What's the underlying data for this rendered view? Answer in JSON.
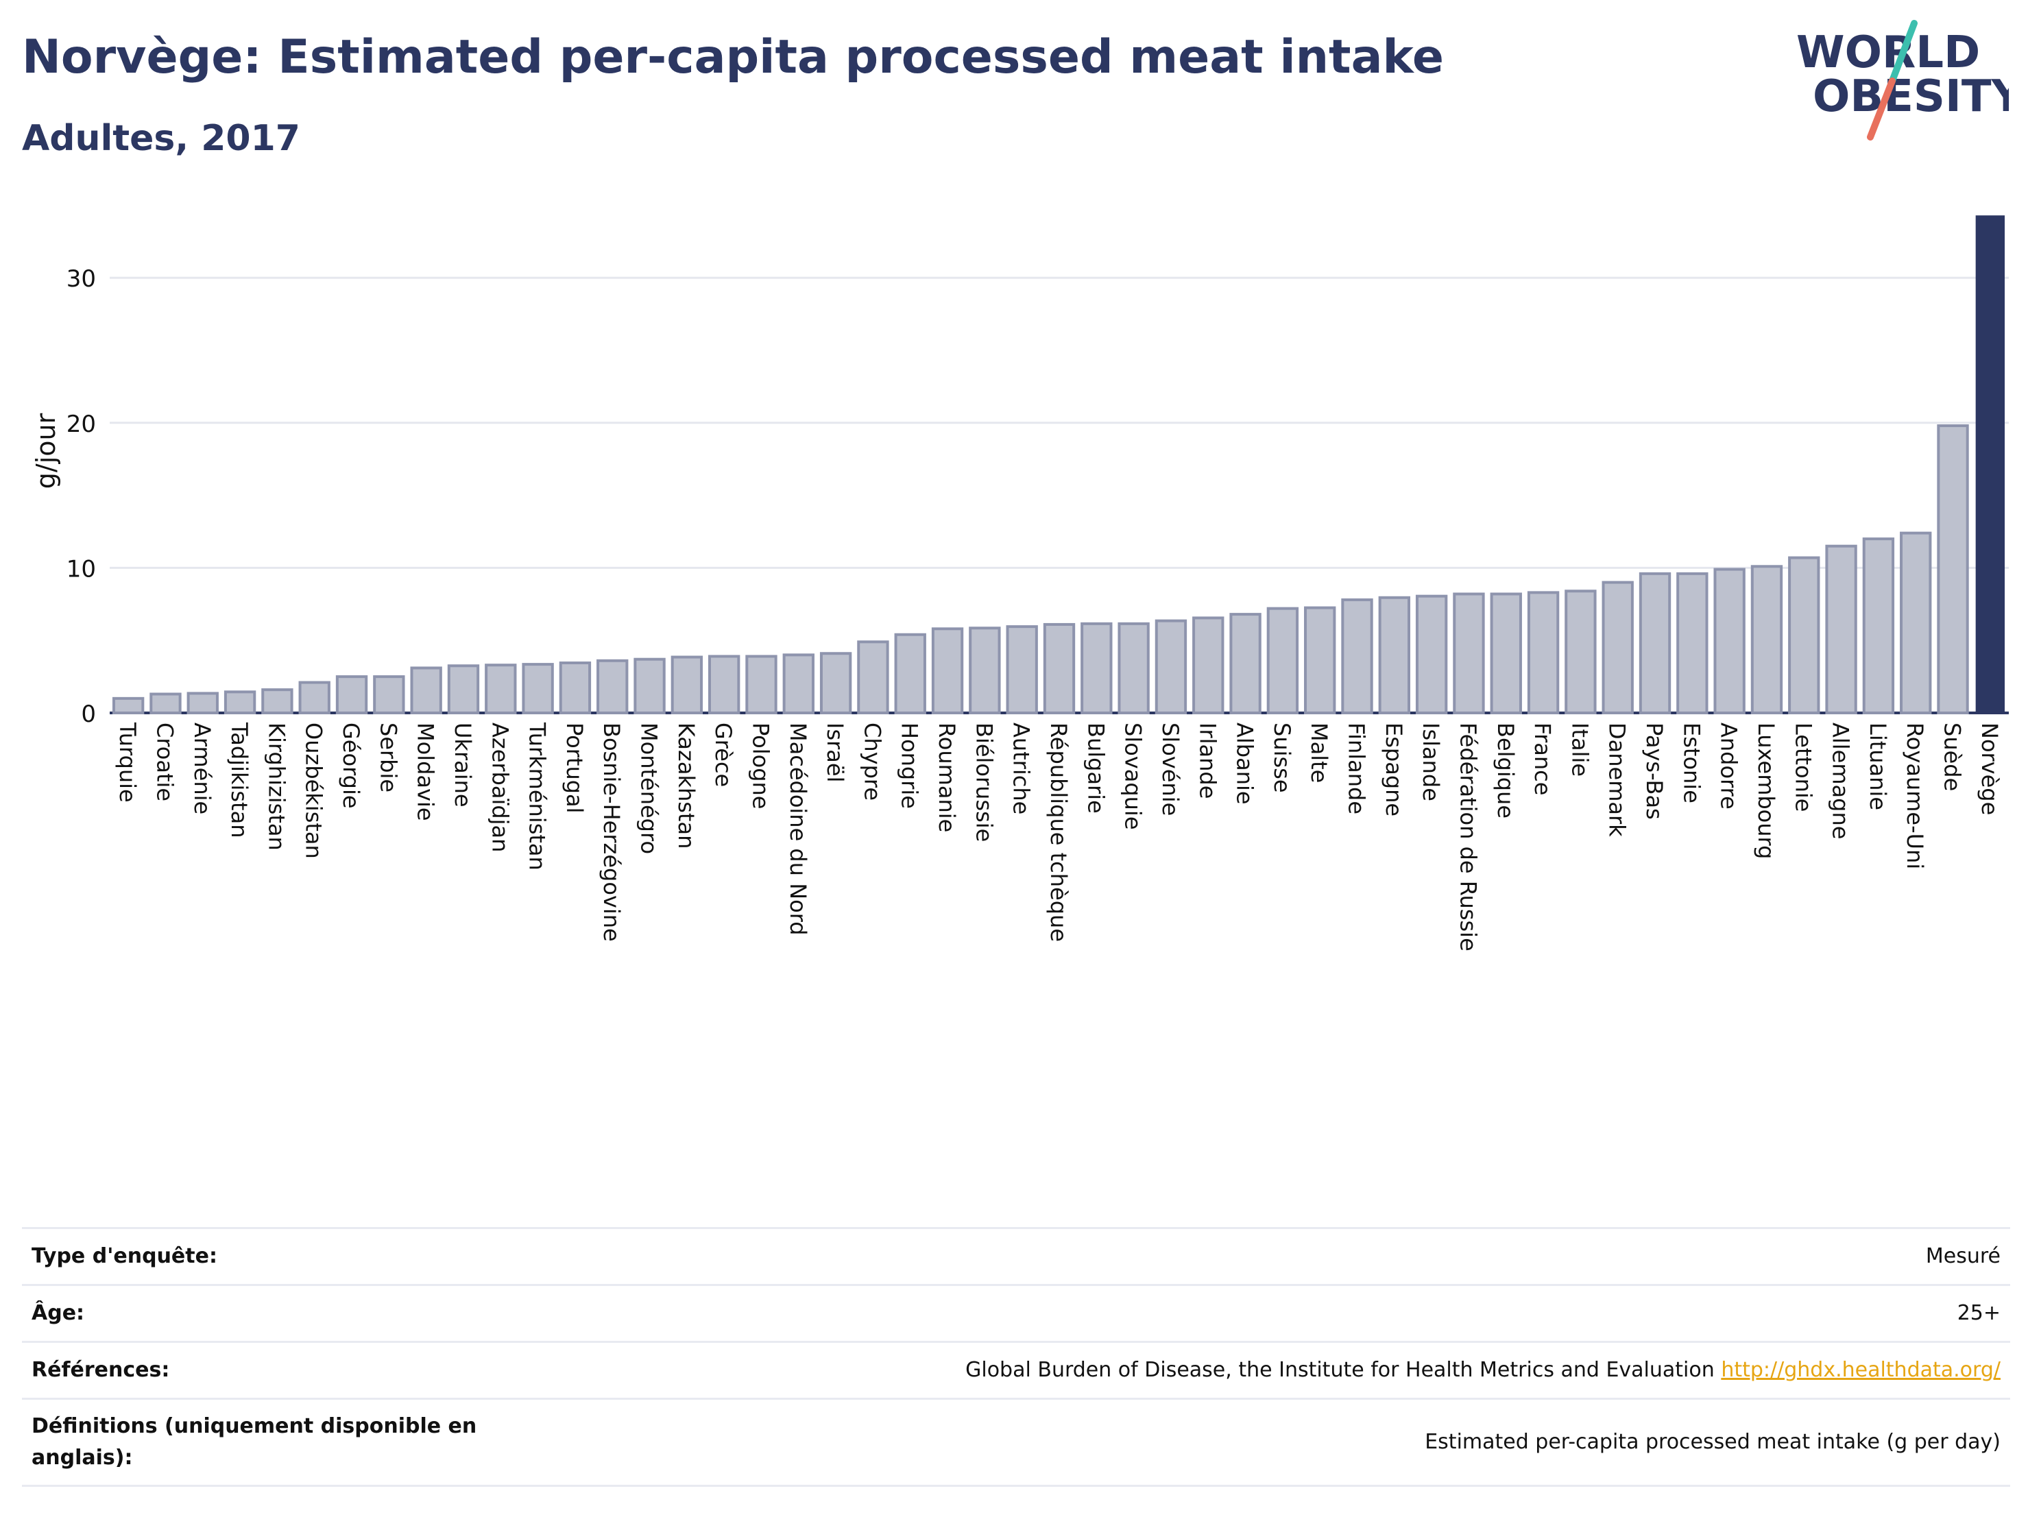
{
  "header": {
    "title": "Norvège: Estimated per-capita processed meat intake",
    "subtitle": "Adultes, 2017"
  },
  "logo": {
    "line1": "WORLD",
    "line2": "OBESITY"
  },
  "colors": {
    "bar_fill": "#bdc1ce",
    "bar_stroke": "#8e94ad",
    "highlight": "#2c3762",
    "grid": "#e5e7ee",
    "text": "#2c3762",
    "link": "#e6a513",
    "logo_teal": "#3cbfae",
    "logo_coral": "#e8705d"
  },
  "chart_data": {
    "type": "bar",
    "title": "Norvège: Estimated per-capita processed meat intake",
    "subtitle": "Adultes, 2017",
    "ylabel": "g/jour",
    "ylim": [
      0,
      34.5
    ],
    "yticks": [
      0,
      10,
      20,
      30
    ],
    "grid": true,
    "highlight": "Norvège",
    "categories": [
      "Turquie",
      "Croatie",
      "Arménie",
      "Tadjikistan",
      "Kirghizistan",
      "Ouzbékistan",
      "Géorgie",
      "Serbie",
      "Moldavie",
      "Ukraine",
      "Azerbaïdjan",
      "Turkménistan",
      "Portugal",
      "Bosnie-Herzégovine",
      "Monténégro",
      "Kazakhstan",
      "Grèce",
      "Pologne",
      "Macédoine du Nord",
      "Israël",
      "Chypre",
      "Hongrie",
      "Roumanie",
      "Biélorussie",
      "Autriche",
      "République tchèque",
      "Bulgarie",
      "Slovaquie",
      "Slovénie",
      "Irlande",
      "Albanie",
      "Suisse",
      "Malte",
      "Finlande",
      "Espagne",
      "Islande",
      "Fédération de Russie",
      "Belgique",
      "France",
      "Italie",
      "Danemark",
      "Pays-Bas",
      "Estonie",
      "Andorre",
      "Luxembourg",
      "Lettonie",
      "Allemagne",
      "Lituanie",
      "Royaume-Uni",
      "Suède",
      "Norvège"
    ],
    "values": [
      1.0,
      1.3,
      1.35,
      1.45,
      1.6,
      2.1,
      2.5,
      2.5,
      3.1,
      3.25,
      3.3,
      3.35,
      3.45,
      3.6,
      3.7,
      3.85,
      3.9,
      3.9,
      4.0,
      4.1,
      4.9,
      5.4,
      5.8,
      5.85,
      5.95,
      6.1,
      6.15,
      6.15,
      6.35,
      6.55,
      6.8,
      7.2,
      7.25,
      7.8,
      7.95,
      8.05,
      8.2,
      8.2,
      8.3,
      8.4,
      9.0,
      9.6,
      9.6,
      9.9,
      10.1,
      10.7,
      11.5,
      12.0,
      12.4,
      19.8,
      34.3
    ]
  },
  "meta": {
    "rows": [
      {
        "label": "Type d'enquête:",
        "value": "Mesuré"
      },
      {
        "label": "Âge:",
        "value": "25+"
      },
      {
        "label": "Références:",
        "value": "Global Burden of Disease, the Institute for Health Metrics and Evaluation",
        "link": "http://ghdx.healthdata.org/"
      },
      {
        "label": "Définitions (uniquement disponible en anglais):",
        "value": "Estimated per-capita processed meat intake (g per day)"
      }
    ]
  }
}
